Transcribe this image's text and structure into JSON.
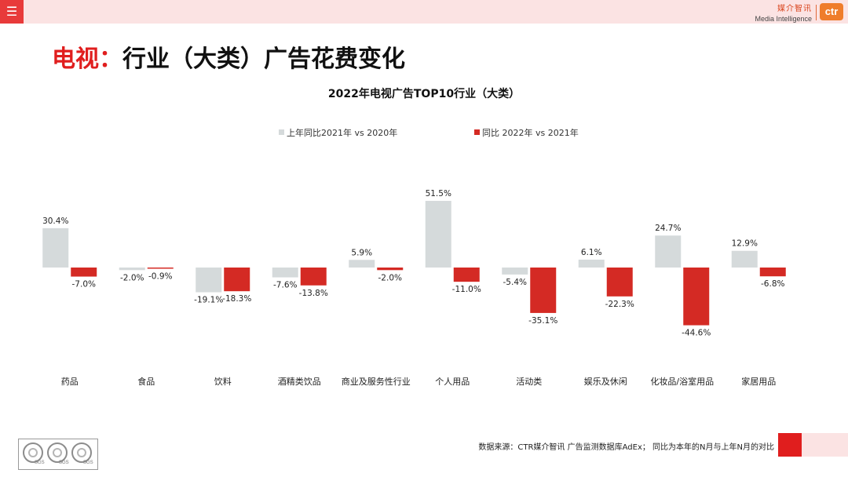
{
  "header": {
    "menu_icon": "hamburger-menu-icon",
    "brand_cn": "媒介智讯",
    "brand_en": "Media Intelligence",
    "logo_text": "ctr"
  },
  "page": {
    "title_accent": "电视：",
    "title_rest": "行业（大类）广告花费变化"
  },
  "colors": {
    "accent_red": "#e01e1e",
    "bar_gray": "#d5dadb",
    "bar_red": "#d42a24",
    "topbar_pink": "#fbe3e3"
  },
  "chart_data": {
    "type": "bar",
    "title": "2022年电视广告TOP10行业（大类）",
    "categories": [
      "药品",
      "食品",
      "饮料",
      "酒精类饮品",
      "商业及服务性行业",
      "个人用品",
      "活动类",
      "娱乐及休闲",
      "化妆品/浴室用品",
      "家居用品"
    ],
    "series": [
      {
        "name": "上年同比2021年 vs 2020年",
        "color": "#d5dadb",
        "values": [
          30.4,
          -2.0,
          -19.1,
          -7.6,
          5.9,
          51.5,
          -5.4,
          6.1,
          24.7,
          12.9
        ],
        "labels": [
          "30.4%",
          "-2.0%",
          "-19.1%",
          "-7.6%",
          "5.9%",
          "51.5%",
          "-5.4%",
          "6.1%",
          "24.7%",
          "12.9%"
        ]
      },
      {
        "name": "同比 2022年 vs 2021年",
        "color": "#d42a24",
        "values": [
          -7.0,
          -0.9,
          -18.3,
          -13.8,
          -2.0,
          -11.0,
          -35.1,
          -22.3,
          -44.6,
          -6.8
        ],
        "labels": [
          "-7.0%",
          "-0.9%",
          "-18.3%",
          "-13.8%",
          "-2.0%",
          "-11.0%",
          "-35.1%",
          "-22.3%",
          "-44.6%",
          "-6.8%"
        ]
      }
    ],
    "legend_position": "top-center",
    "grid": false
  },
  "footer": {
    "source": "数据来源：CTR媒介智讯 广告监测数据库AdEx； 同比为本年的N月与上年N月的对比",
    "badge_label": "SGS"
  }
}
